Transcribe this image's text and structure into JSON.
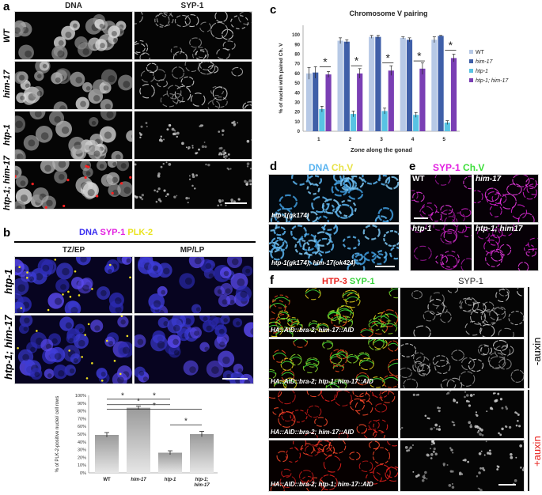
{
  "panels": {
    "a": {
      "letter": "a",
      "col_titles": [
        "DNA",
        "SYP-1"
      ],
      "rows": [
        "WT",
        "him-17",
        "htp-1",
        "htp-1; him-17"
      ]
    },
    "b": {
      "letter": "b",
      "legend": {
        "dna": "DNA",
        "syp": "SYP-1",
        "plk": "PLK-2"
      },
      "col_titles": [
        "TZ/EP",
        "MP/LP"
      ],
      "rows": [
        "htp-1",
        "htp-1; him-17"
      ]
    },
    "b_chart": {
      "ylabel": "% of PLK-2-positive nuclei/ cell rows",
      "ytick_labels": [
        "0%",
        "10%",
        "20%",
        "30%",
        "40%",
        "50%",
        "60%",
        "70%",
        "80%",
        "90%",
        "100%"
      ],
      "cat_labels": [
        "WT",
        "him-17",
        "htp-1",
        "htp-1;",
        "him-17"
      ],
      "sig_marks": [
        "*",
        "*",
        "*",
        "*",
        "*"
      ]
    },
    "c": {
      "letter": "c",
      "legend": [
        "WT",
        "him-17",
        "htp-1",
        "htp-1; him-17"
      ],
      "colors": [
        "#b7c9e6",
        "#3f5fa8",
        "#58c3e3",
        "#7a3fb4"
      ],
      "ytick_labels": [
        "0",
        "10",
        "20",
        "30",
        "40",
        "50",
        "60",
        "70",
        "80",
        "90",
        "100"
      ],
      "xtick_labels": [
        "1",
        "2",
        "3",
        "4",
        "5"
      ],
      "stars": [
        "*",
        "*",
        "*",
        "*",
        "*"
      ]
    },
    "d": {
      "letter": "d",
      "legend": {
        "dna": "DNA",
        "chv": "Ch.V"
      },
      "insets": [
        "htp-1(gk174)",
        "htp-1(gk174); him-17(ok424)"
      ]
    },
    "e": {
      "letter": "e",
      "legend": {
        "syp": "SYP-1",
        "chv": "Ch.V"
      },
      "cells": [
        "WT",
        "him-17",
        "htp-1",
        "htp-1; him17"
      ]
    },
    "f": {
      "letter": "f",
      "legend": {
        "htp": "HTP-3",
        "syp": "SYP-1"
      },
      "col2_title": "SYP-1",
      "rows": [
        "HA::AID::bra-2; him-17::AID",
        "HA::AID::bra-2; htp-1; him-17::AID",
        "HA::AID::bra-2; him-17::AID",
        "HA::AID::bra-2; htp-1; him-17::AID"
      ],
      "minus_auxin": "-auxin",
      "plus_auxin": "+auxin"
    }
  },
  "chart_data": [
    {
      "type": "bar",
      "title": "",
      "xlabel": "",
      "ylabel": "% of PLK-2-positive nuclei/ cell rows",
      "categories": [
        "WT",
        "him-17",
        "htp-1",
        "htp-1; him-17"
      ],
      "values": [
        49,
        84,
        26,
        50
      ],
      "errors": [
        3,
        2,
        2.5,
        3.5
      ],
      "ylim": [
        0,
        100
      ],
      "grid": false
    },
    {
      "type": "bar",
      "title": "Chromosome V pairing",
      "xlabel": "Zone along the gonad",
      "ylabel": "% of nuclei with paired Ch. V",
      "categories": [
        "1",
        "2",
        "3",
        "4",
        "5"
      ],
      "series": [
        {
          "name": "WT",
          "values": [
            60,
            94,
            98,
            97,
            95
          ],
          "errors": [
            6,
            3,
            1.5,
            1,
            3
          ]
        },
        {
          "name": "him-17",
          "values": [
            61,
            93,
            98,
            95,
            99
          ],
          "errors": [
            6,
            2,
            1.5,
            2,
            0.5
          ]
        },
        {
          "name": "htp-1",
          "values": [
            23,
            18,
            21,
            17,
            9
          ],
          "errors": [
            3,
            3,
            3,
            2.5,
            2
          ]
        },
        {
          "name": "htp-1; him-17",
          "values": [
            59,
            60,
            63,
            65,
            76
          ],
          "errors": [
            3,
            5,
            5,
            6,
            4
          ]
        }
      ],
      "ylim": [
        0,
        110
      ],
      "legend": "right",
      "grid": false
    }
  ]
}
